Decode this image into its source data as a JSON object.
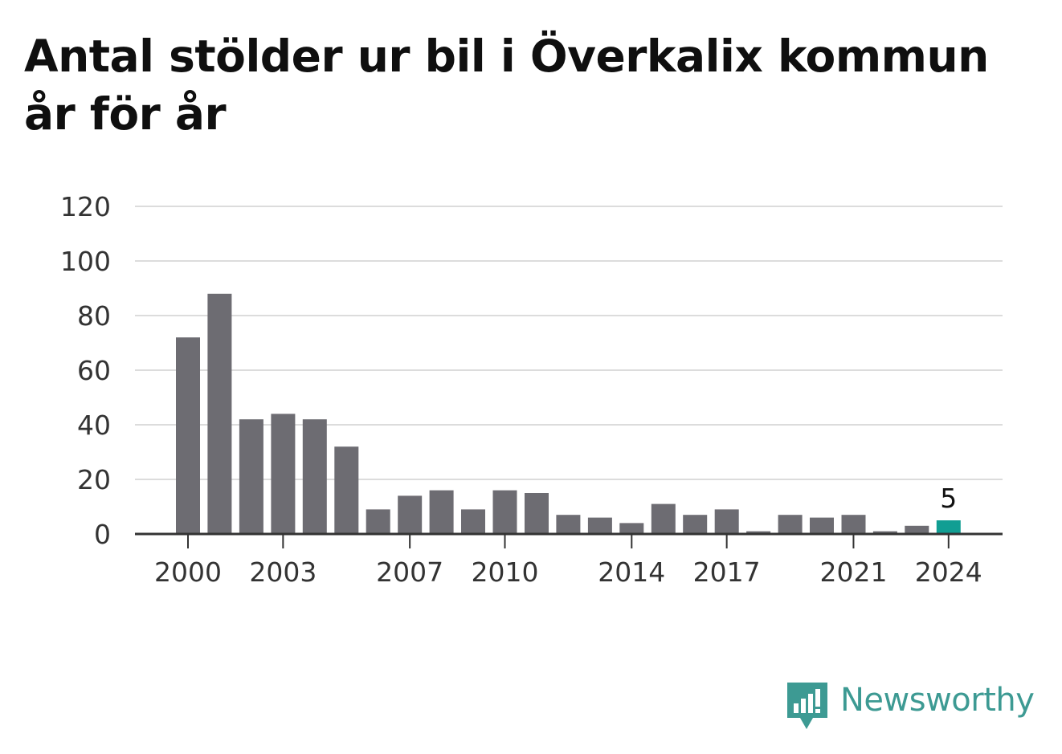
{
  "chart_data": {
    "type": "bar",
    "title": "Antal stölder ur bil i Överkalix kommun år för år",
    "xlabel": "",
    "ylabel": "",
    "x": [
      2000,
      2001,
      2002,
      2003,
      2004,
      2005,
      2006,
      2007,
      2008,
      2009,
      2010,
      2011,
      2012,
      2013,
      2014,
      2015,
      2016,
      2017,
      2018,
      2019,
      2020,
      2021,
      2022,
      2023,
      2024
    ],
    "values": [
      72,
      88,
      42,
      44,
      42,
      32,
      9,
      14,
      16,
      9,
      16,
      15,
      7,
      6,
      4,
      11,
      7,
      9,
      1,
      7,
      6,
      7,
      1,
      3,
      5
    ],
    "ylim": [
      0,
      120
    ],
    "yticks": [
      0,
      20,
      40,
      60,
      80,
      100,
      120
    ],
    "xtick_labels": [
      2000,
      2003,
      2007,
      2010,
      2014,
      2017,
      2021,
      2024
    ],
    "highlight": {
      "x": 2024,
      "label": "5"
    },
    "grid": true,
    "legend": "none",
    "colors": {
      "bar": "#6d6c72",
      "highlight": "#119e93",
      "grid": "#dcdcdc",
      "axis": "#333333"
    }
  },
  "branding": {
    "logo_text": "Newsworthy",
    "logo_icon": "newsworthy-logo-icon",
    "color": "#3d9a93"
  }
}
